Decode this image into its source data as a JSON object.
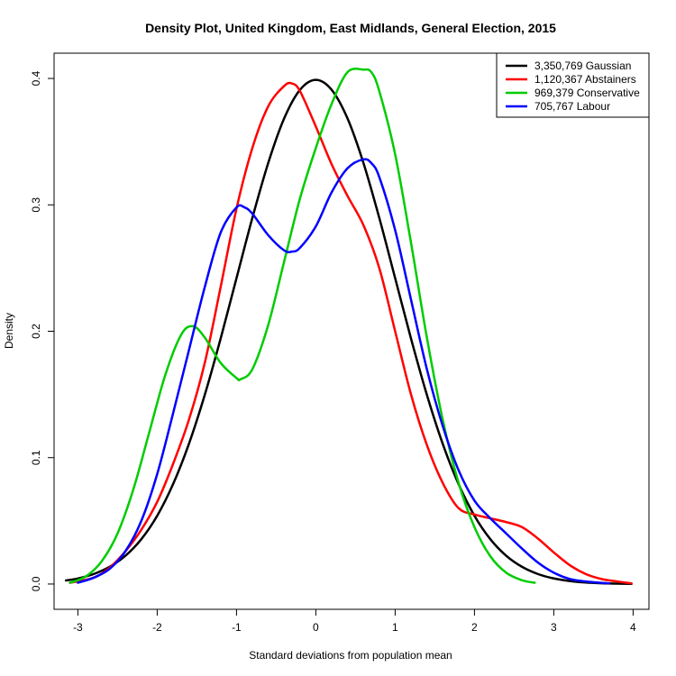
{
  "chart_data": {
    "type": "line",
    "title": "Density Plot, United Kingdom, East Midlands, General Election, 2015",
    "xlabel": "Standard deviations from population mean",
    "ylabel": "Density",
    "xlim": [
      -3.3,
      4.2
    ],
    "ylim": [
      -0.02,
      0.42
    ],
    "x_ticks": [
      -3,
      -2,
      -1,
      0,
      1,
      2,
      3,
      4
    ],
    "y_ticks": [
      0.0,
      0.1,
      0.2,
      0.3,
      0.4
    ],
    "x_tick_labels": [
      "-3",
      "-2",
      "-1",
      "0",
      "1",
      "2",
      "3",
      "4"
    ],
    "y_tick_labels": [
      "0.0",
      "0.1",
      "0.2",
      "0.3",
      "0.4"
    ],
    "grid": false,
    "legend_position": "top-right",
    "series": [
      {
        "name": "3,350,769 Gaussian",
        "color": "#000000",
        "x": [
          -3.15,
          -3.0,
          -2.8,
          -2.6,
          -2.4,
          -2.2,
          -2.0,
          -1.8,
          -1.6,
          -1.4,
          -1.2,
          -1.0,
          -0.8,
          -0.6,
          -0.4,
          -0.2,
          0.0,
          0.2,
          0.4,
          0.6,
          0.8,
          1.0,
          1.2,
          1.4,
          1.6,
          1.8,
          2.0,
          2.2,
          2.4,
          2.6,
          2.8,
          3.0,
          3.2,
          3.4,
          3.6,
          3.8,
          3.98
        ],
        "y": [
          0.0028,
          0.0044,
          0.0079,
          0.0136,
          0.0224,
          0.0355,
          0.054,
          0.079,
          0.1109,
          0.1497,
          0.1942,
          0.242,
          0.2897,
          0.3332,
          0.3683,
          0.391,
          0.3989,
          0.391,
          0.3683,
          0.3332,
          0.2897,
          0.242,
          0.1942,
          0.1497,
          0.1109,
          0.079,
          0.054,
          0.0355,
          0.0224,
          0.0136,
          0.0079,
          0.0044,
          0.0024,
          0.0012,
          0.0006,
          0.0003,
          0.0001
        ]
      },
      {
        "name": "1,120,367 Abstainers",
        "color": "#ff0000",
        "x": [
          -3.1,
          -2.8,
          -2.6,
          -2.4,
          -2.2,
          -2.0,
          -1.8,
          -1.6,
          -1.4,
          -1.2,
          -1.0,
          -0.8,
          -0.6,
          -0.4,
          -0.3,
          -0.2,
          0.0,
          0.2,
          0.4,
          0.6,
          0.8,
          1.0,
          1.2,
          1.4,
          1.6,
          1.8,
          2.0,
          2.2,
          2.4,
          2.6,
          2.8,
          3.0,
          3.2,
          3.4,
          3.6,
          3.8,
          3.98
        ],
        "y": [
          0.001,
          0.005,
          0.013,
          0.026,
          0.043,
          0.065,
          0.095,
          0.13,
          0.175,
          0.235,
          0.297,
          0.345,
          0.378,
          0.394,
          0.396,
          0.39,
          0.362,
          0.332,
          0.307,
          0.284,
          0.25,
          0.2,
          0.15,
          0.11,
          0.08,
          0.06,
          0.055,
          0.052,
          0.049,
          0.045,
          0.036,
          0.025,
          0.015,
          0.008,
          0.004,
          0.002,
          0.0005
        ]
      },
      {
        "name": "969,379 Conservative",
        "color": "#00cc00",
        "x": [
          -3.1,
          -2.9,
          -2.7,
          -2.5,
          -2.3,
          -2.1,
          -1.9,
          -1.7,
          -1.55,
          -1.4,
          -1.2,
          -1.0,
          -0.95,
          -0.8,
          -0.6,
          -0.4,
          -0.2,
          0.0,
          0.2,
          0.4,
          0.6,
          0.7,
          0.8,
          1.0,
          1.2,
          1.4,
          1.6,
          1.8,
          2.0,
          2.2,
          2.4,
          2.6,
          2.76
        ],
        "y": [
          0.001,
          0.006,
          0.018,
          0.04,
          0.075,
          0.12,
          0.165,
          0.197,
          0.204,
          0.195,
          0.175,
          0.163,
          0.162,
          0.17,
          0.205,
          0.255,
          0.305,
          0.345,
          0.38,
          0.405,
          0.407,
          0.405,
          0.39,
          0.34,
          0.27,
          0.195,
          0.13,
          0.08,
          0.045,
          0.022,
          0.009,
          0.003,
          0.001
        ]
      },
      {
        "name": "705,767 Labour",
        "color": "#0000ff",
        "x": [
          -3.0,
          -2.8,
          -2.6,
          -2.4,
          -2.2,
          -2.0,
          -1.8,
          -1.6,
          -1.4,
          -1.2,
          -1.0,
          -0.9,
          -0.8,
          -0.6,
          -0.4,
          -0.3,
          -0.2,
          0.0,
          0.2,
          0.4,
          0.6,
          0.7,
          0.8,
          1.0,
          1.2,
          1.4,
          1.6,
          1.8,
          2.0,
          2.2,
          2.4,
          2.6,
          2.8,
          3.0,
          3.2,
          3.4,
          3.7
        ],
        "y": [
          0.001,
          0.005,
          0.012,
          0.026,
          0.05,
          0.087,
          0.135,
          0.185,
          0.235,
          0.278,
          0.298,
          0.298,
          0.293,
          0.276,
          0.264,
          0.263,
          0.266,
          0.283,
          0.31,
          0.329,
          0.336,
          0.333,
          0.322,
          0.28,
          0.225,
          0.17,
          0.125,
          0.09,
          0.066,
          0.052,
          0.04,
          0.028,
          0.017,
          0.009,
          0.004,
          0.002,
          0.0005
        ]
      }
    ]
  }
}
